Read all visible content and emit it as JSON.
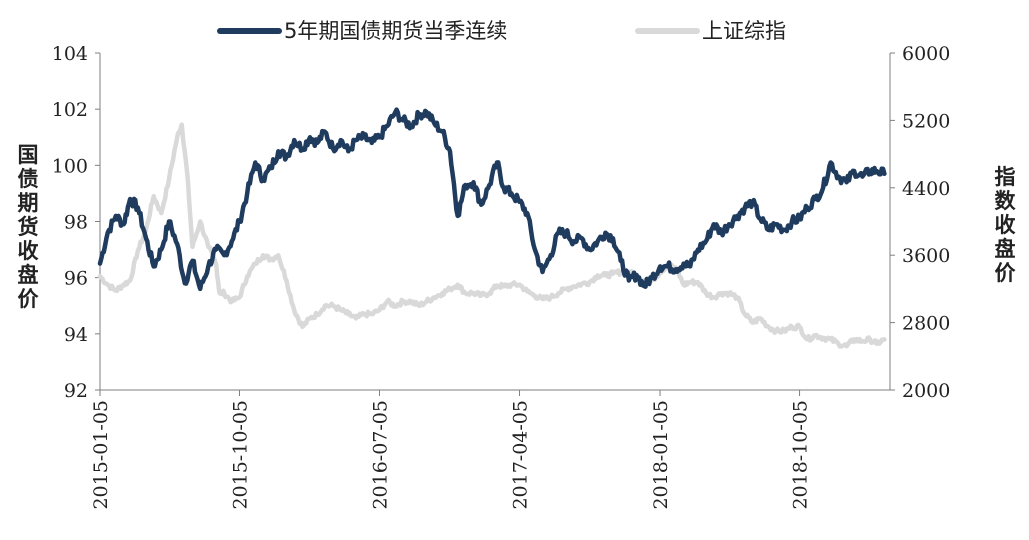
{
  "chart_data": {
    "type": "line",
    "legend_position": "top",
    "grid": false,
    "left_axis": {
      "title": "国债期货收盘价",
      "ylim": [
        92,
        104
      ],
      "ticks": [
        "92",
        "94",
        "96",
        "98",
        "100",
        "102",
        "104"
      ]
    },
    "right_axis": {
      "title": "指数收盘价",
      "ylim": [
        2000,
        6000
      ],
      "ticks": [
        "2000",
        "2800",
        "3600",
        "4400",
        "5200",
        "6000"
      ]
    },
    "x_ticks": [
      "2015-01-05",
      "2015-10-05",
      "2016-07-05",
      "2017-04-05",
      "2018-01-05",
      "2018-10-05"
    ],
    "x_range": [
      "2015-01-05",
      "2019-03-31"
    ],
    "series": [
      {
        "name": "5年期国债期货当季连续",
        "axis": "left",
        "color": "#1f3b5e",
        "points": [
          [
            "2015-01-05",
            96.5
          ],
          [
            "2015-01-20",
            97.6
          ],
          [
            "2015-02-05",
            98.2
          ],
          [
            "2015-02-20",
            97.9
          ],
          [
            "2015-03-05",
            98.8
          ],
          [
            "2015-03-20",
            98.5
          ],
          [
            "2015-04-05",
            97.4
          ],
          [
            "2015-04-20",
            96.4
          ],
          [
            "2015-05-05",
            97.0
          ],
          [
            "2015-05-20",
            98.0
          ],
          [
            "2015-06-05",
            97.2
          ],
          [
            "2015-06-20",
            95.8
          ],
          [
            "2015-07-05",
            96.6
          ],
          [
            "2015-07-20",
            95.6
          ],
          [
            "2015-08-05",
            96.4
          ],
          [
            "2015-08-20",
            97.0
          ],
          [
            "2015-09-05",
            96.8
          ],
          [
            "2015-09-20",
            97.3
          ],
          [
            "2015-10-05",
            98.0
          ],
          [
            "2015-10-20",
            99.0
          ],
          [
            "2015-11-05",
            100.1
          ],
          [
            "2015-11-20",
            99.5
          ],
          [
            "2015-12-05",
            99.9
          ],
          [
            "2015-12-20",
            100.5
          ],
          [
            "2016-01-05",
            100.3
          ],
          [
            "2016-01-20",
            100.9
          ],
          [
            "2016-02-05",
            100.6
          ],
          [
            "2016-02-20",
            101.0
          ],
          [
            "2016-03-05",
            100.8
          ],
          [
            "2016-03-20",
            101.2
          ],
          [
            "2016-04-05",
            100.6
          ],
          [
            "2016-04-20",
            100.9
          ],
          [
            "2016-05-05",
            100.5
          ],
          [
            "2016-05-20",
            100.9
          ],
          [
            "2016-06-05",
            101.0
          ],
          [
            "2016-06-20",
            100.8
          ],
          [
            "2016-07-05",
            101.0
          ],
          [
            "2016-07-20",
            101.4
          ],
          [
            "2016-08-05",
            101.9
          ],
          [
            "2016-08-20",
            101.6
          ],
          [
            "2016-09-05",
            101.4
          ],
          [
            "2016-09-20",
            101.8
          ],
          [
            "2016-10-05",
            101.9
          ],
          [
            "2016-10-20",
            101.5
          ],
          [
            "2016-11-05",
            101.2
          ],
          [
            "2016-11-20",
            100.5
          ],
          [
            "2016-12-05",
            98.2
          ],
          [
            "2016-12-20",
            99.3
          ],
          [
            "2017-01-05",
            99.4
          ],
          [
            "2017-01-20",
            98.6
          ],
          [
            "2017-02-05",
            99.3
          ],
          [
            "2017-02-20",
            100.1
          ],
          [
            "2017-03-05",
            99.2
          ],
          [
            "2017-03-20",
            99.0
          ],
          [
            "2017-04-05",
            98.7
          ],
          [
            "2017-04-20",
            98.3
          ],
          [
            "2017-05-05",
            97.0
          ],
          [
            "2017-05-20",
            96.2
          ],
          [
            "2017-06-05",
            96.8
          ],
          [
            "2017-06-20",
            97.6
          ],
          [
            "2017-07-05",
            97.6
          ],
          [
            "2017-07-20",
            97.3
          ],
          [
            "2017-08-05",
            97.4
          ],
          [
            "2017-08-20",
            97.0
          ],
          [
            "2017-09-05",
            97.3
          ],
          [
            "2017-09-20",
            97.6
          ],
          [
            "2017-10-05",
            97.4
          ],
          [
            "2017-10-20",
            96.6
          ],
          [
            "2017-11-05",
            95.9
          ],
          [
            "2017-11-20",
            96.1
          ],
          [
            "2017-12-05",
            95.7
          ],
          [
            "2017-12-20",
            96.0
          ],
          [
            "2018-01-05",
            96.4
          ],
          [
            "2018-01-20",
            96.4
          ],
          [
            "2018-02-05",
            96.3
          ],
          [
            "2018-02-20",
            96.5
          ],
          [
            "2018-03-05",
            96.4
          ],
          [
            "2018-03-20",
            97.0
          ],
          [
            "2018-04-05",
            97.3
          ],
          [
            "2018-04-20",
            97.9
          ],
          [
            "2018-05-05",
            97.6
          ],
          [
            "2018-05-20",
            97.9
          ],
          [
            "2018-06-05",
            98.2
          ],
          [
            "2018-06-20",
            98.5
          ],
          [
            "2018-07-05",
            98.7
          ],
          [
            "2018-07-20",
            98.1
          ],
          [
            "2018-08-05",
            97.7
          ],
          [
            "2018-08-20",
            97.9
          ],
          [
            "2018-09-05",
            97.7
          ],
          [
            "2018-09-20",
            98.0
          ],
          [
            "2018-10-05",
            98.1
          ],
          [
            "2018-10-20",
            98.5
          ],
          [
            "2018-11-05",
            98.8
          ],
          [
            "2018-11-20",
            99.2
          ],
          [
            "2018-12-05",
            100.1
          ],
          [
            "2018-12-20",
            99.6
          ],
          [
            "2019-01-05",
            99.4
          ],
          [
            "2019-01-20",
            99.8
          ],
          [
            "2019-02-05",
            99.6
          ],
          [
            "2019-02-20",
            99.8
          ],
          [
            "2019-03-05",
            99.8
          ],
          [
            "2019-03-20",
            99.7
          ]
        ]
      },
      {
        "name": "上证综指",
        "axis": "right",
        "color": "#d9d9d9",
        "points": [
          [
            "2015-01-05",
            3350
          ],
          [
            "2015-01-20",
            3250
          ],
          [
            "2015-02-05",
            3180
          ],
          [
            "2015-02-20",
            3250
          ],
          [
            "2015-03-05",
            3300
          ],
          [
            "2015-03-20",
            3650
          ],
          [
            "2015-04-05",
            3900
          ],
          [
            "2015-04-20",
            4300
          ],
          [
            "2015-05-05",
            4100
          ],
          [
            "2015-05-20",
            4500
          ],
          [
            "2015-06-05",
            5000
          ],
          [
            "2015-06-14",
            5150
          ],
          [
            "2015-06-25",
            4550
          ],
          [
            "2015-07-05",
            3700
          ],
          [
            "2015-07-20",
            4000
          ],
          [
            "2015-08-05",
            3700
          ],
          [
            "2015-08-20",
            3500
          ],
          [
            "2015-08-27",
            3150
          ],
          [
            "2015-09-05",
            3150
          ],
          [
            "2015-09-20",
            3050
          ],
          [
            "2015-10-05",
            3100
          ],
          [
            "2015-10-20",
            3350
          ],
          [
            "2015-11-05",
            3500
          ],
          [
            "2015-11-20",
            3600
          ],
          [
            "2015-12-05",
            3550
          ],
          [
            "2015-12-20",
            3600
          ],
          [
            "2016-01-05",
            3300
          ],
          [
            "2016-01-20",
            2950
          ],
          [
            "2016-02-05",
            2750
          ],
          [
            "2016-02-20",
            2850
          ],
          [
            "2016-03-05",
            2900
          ],
          [
            "2016-03-20",
            3000
          ],
          [
            "2016-04-05",
            3000
          ],
          [
            "2016-04-20",
            2950
          ],
          [
            "2016-05-05",
            2900
          ],
          [
            "2016-05-20",
            2850
          ],
          [
            "2016-06-05",
            2900
          ],
          [
            "2016-06-20",
            2900
          ],
          [
            "2016-07-05",
            2950
          ],
          [
            "2016-07-20",
            3050
          ],
          [
            "2016-08-05",
            3000
          ],
          [
            "2016-08-20",
            3050
          ],
          [
            "2016-09-05",
            3050
          ],
          [
            "2016-09-20",
            3000
          ],
          [
            "2016-10-05",
            3050
          ],
          [
            "2016-10-20",
            3100
          ],
          [
            "2016-11-05",
            3150
          ],
          [
            "2016-11-20",
            3200
          ],
          [
            "2016-12-05",
            3250
          ],
          [
            "2016-12-20",
            3150
          ],
          [
            "2017-01-05",
            3150
          ],
          [
            "2017-01-20",
            3120
          ],
          [
            "2017-02-05",
            3150
          ],
          [
            "2017-02-20",
            3240
          ],
          [
            "2017-03-05",
            3230
          ],
          [
            "2017-03-20",
            3250
          ],
          [
            "2017-04-05",
            3250
          ],
          [
            "2017-04-20",
            3170
          ],
          [
            "2017-05-05",
            3120
          ],
          [
            "2017-05-20",
            3080
          ],
          [
            "2017-06-05",
            3100
          ],
          [
            "2017-06-20",
            3150
          ],
          [
            "2017-07-05",
            3200
          ],
          [
            "2017-07-20",
            3230
          ],
          [
            "2017-08-05",
            3260
          ],
          [
            "2017-08-20",
            3280
          ],
          [
            "2017-09-05",
            3360
          ],
          [
            "2017-09-20",
            3360
          ],
          [
            "2017-10-05",
            3380
          ],
          [
            "2017-10-20",
            3400
          ],
          [
            "2017-11-05",
            3400
          ],
          [
            "2017-11-20",
            3350
          ],
          [
            "2017-12-05",
            3300
          ],
          [
            "2017-12-20",
            3300
          ],
          [
            "2018-01-05",
            3400
          ],
          [
            "2018-01-20",
            3480
          ],
          [
            "2018-02-05",
            3450
          ],
          [
            "2018-02-20",
            3250
          ],
          [
            "2018-03-05",
            3280
          ],
          [
            "2018-03-20",
            3280
          ],
          [
            "2018-04-05",
            3150
          ],
          [
            "2018-04-20",
            3100
          ],
          [
            "2018-05-05",
            3150
          ],
          [
            "2018-05-20",
            3150
          ],
          [
            "2018-06-05",
            3100
          ],
          [
            "2018-06-20",
            2900
          ],
          [
            "2018-07-05",
            2800
          ],
          [
            "2018-07-20",
            2850
          ],
          [
            "2018-08-05",
            2750
          ],
          [
            "2018-08-20",
            2700
          ],
          [
            "2018-09-05",
            2700
          ],
          [
            "2018-09-20",
            2750
          ],
          [
            "2018-10-05",
            2750
          ],
          [
            "2018-10-20",
            2600
          ],
          [
            "2018-11-05",
            2650
          ],
          [
            "2018-11-20",
            2620
          ],
          [
            "2018-12-05",
            2600
          ],
          [
            "2018-12-20",
            2550
          ],
          [
            "2019-01-05",
            2520
          ],
          [
            "2019-01-20",
            2600
          ],
          [
            "2019-02-05",
            2580
          ],
          [
            "2019-02-20",
            2600
          ],
          [
            "2019-03-05",
            2550
          ],
          [
            "2019-03-20",
            2600
          ]
        ]
      }
    ]
  }
}
